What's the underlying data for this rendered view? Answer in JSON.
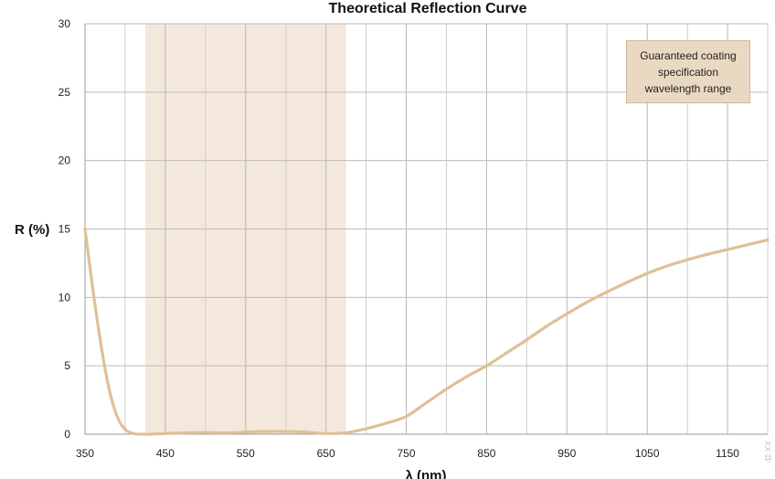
{
  "chart_data": {
    "type": "line",
    "title": "Theoretical Reflection Curve",
    "xlabel": "λ (nm)",
    "ylabel": "R (%)",
    "xlim": [
      350,
      1200
    ],
    "ylim": [
      0,
      30
    ],
    "x_ticks": [
      350,
      450,
      550,
      650,
      750,
      850,
      950,
      1050,
      1150
    ],
    "y_ticks": [
      0,
      5,
      10,
      15,
      20,
      25,
      30
    ],
    "grid": true,
    "band": {
      "label": "Guaranteed coating specification wavelength range",
      "x_range": [
        425,
        675
      ],
      "color": "#f4e8dc"
    },
    "legend_position": "top-right",
    "line_color": "#dfc095",
    "series": [
      {
        "x": [
          350,
          360,
          370,
          380,
          390,
          400,
          410,
          420,
          430,
          450,
          475,
          500,
          525,
          550,
          575,
          600,
          625,
          650,
          675,
          700,
          725,
          750,
          775,
          800,
          825,
          850,
          875,
          900,
          925,
          950,
          975,
          1000,
          1025,
          1050,
          1075,
          1100,
          1125,
          1150,
          1175,
          1200
        ],
        "y": [
          15.0,
          10.5,
          6.5,
          3.3,
          1.3,
          0.35,
          0.05,
          0.0,
          0.0,
          0.05,
          0.1,
          0.12,
          0.1,
          0.15,
          0.2,
          0.2,
          0.15,
          0.05,
          0.1,
          0.4,
          0.8,
          1.3,
          2.3,
          3.3,
          4.2,
          5.0,
          5.95,
          6.9,
          7.9,
          8.8,
          9.65,
          10.4,
          11.1,
          11.75,
          12.3,
          12.75,
          13.15,
          13.5,
          13.85,
          14.2
        ]
      }
    ]
  },
  "watermark": "XX 导"
}
